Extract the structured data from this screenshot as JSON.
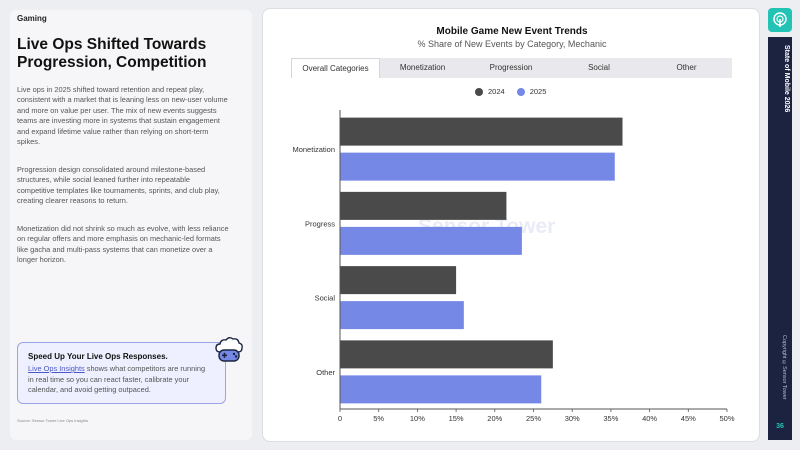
{
  "left": {
    "category": "Gaming",
    "headline": "Live Ops Shifted Towards Progression, Competition",
    "paragraphs": [
      "Live ops in 2025 shifted toward retention and repeat play, consistent with a market that is leaning less on new-user volume and more on value per user. The mix of new events suggests teams are investing more in systems that sustain engagement and expand lifetime value rather than relying on short-term spikes.",
      "Progression design consolidated around milestone-based structures, while social leaned further into repeatable competitive templates like tournaments, sprints, and club play, creating clearer reasons to return.",
      "Monetization did not shrink so much as evolve, with less reliance on regular offers and more emphasis on mechanic-led formats like gacha and multi-pass systems that can monetize over a longer horizon."
    ],
    "promo": {
      "title": "Speed Up Your Live Ops Responses.",
      "link": "Live Ops Insights",
      "body": " shows what competitors are running in real time so you can react faster, calibrate your calendar, and avoid getting outpaced.",
      "icon": "cloud-gamepad-icon"
    },
    "source": "Source: Sensor Tower Live Ops Insights"
  },
  "tabs": [
    "Overall Categories",
    "Monetization",
    "Progression",
    "Social",
    "Other"
  ],
  "watermark": "Sensor Tower",
  "sidebar": {
    "logo_icon": "sensor-tower-logo-icon",
    "title": "State of Mobile 2026",
    "copyright": "Copyright ©Sensor Tower",
    "page_number": "36"
  },
  "colors": {
    "y2024": "#4a4a4a",
    "y2025": "#7688e6",
    "accent": "#22c3b5",
    "strip": "#1c2340"
  },
  "chart_data": {
    "type": "bar",
    "orientation": "horizontal",
    "title": "Mobile Game New Event Trends",
    "subtitle": "% Share of New Events by Category, Mechanic",
    "categories": [
      "Monetization",
      "Progress",
      "Social",
      "Other"
    ],
    "series": [
      {
        "name": "2024",
        "values": [
          36.5,
          21.5,
          15.0,
          27.5
        ]
      },
      {
        "name": "2025",
        "values": [
          35.5,
          23.5,
          16.0,
          26.0
        ]
      }
    ],
    "xlim": [
      0,
      50
    ],
    "x_ticks": [
      "0",
      "5%",
      "10%",
      "15%",
      "20%",
      "25%",
      "30%",
      "35%",
      "40%",
      "45%",
      "50%"
    ],
    "legend_position": "top-center",
    "grid": false
  }
}
